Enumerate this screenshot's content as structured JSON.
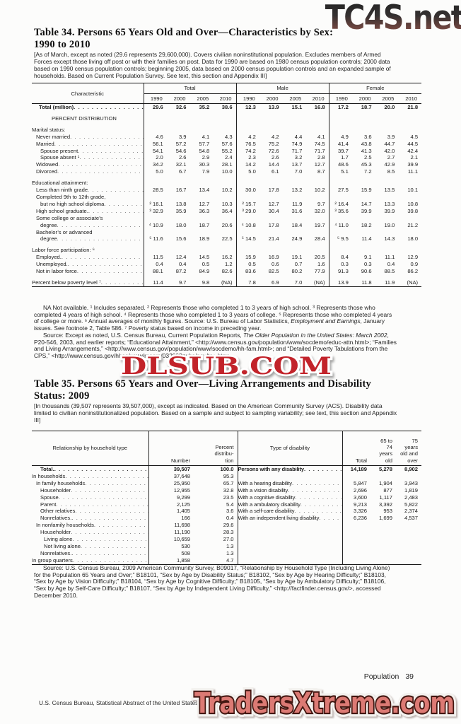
{
  "watermarks": {
    "top": "TC4S.net",
    "middle": "DLSUB.COM",
    "bottom": "TradersXtreme.com"
  },
  "footer": {
    "page_label": "Population",
    "page_number": "39",
    "bureau_line": "U.S. Census Bureau, Statistical Abstract of the United States: 2012"
  },
  "table34": {
    "title_line1": "Table 34. Persons 65 Years Old and Over—Characteristics by Sex:",
    "title_line2": "1990 to 2010",
    "bracket_note": "[As of March, except as noted (29.6 represents 29,600,000). Covers civilian noninstitutional population. Excludes members of Armed Forces except those living off post or with their families on post. Data for 1990 are based on 1980 census population controls; 2000 data based on 1990 census population controls; beginning 2005, data based on 2000 census population controls and an expanded sample of households. Based on Current Population Survey. See text, this section and Appendix III]",
    "characteristic_header": "Characteristic",
    "groups": [
      "Total",
      "Male",
      "Female"
    ],
    "years": [
      "1990",
      "2000",
      "2005",
      "2010"
    ],
    "rows": [
      {
        "type": "data",
        "bold": true,
        "indent": 10,
        "label": "Total (million)",
        "values": [
          "29.6",
          "32.6",
          "35.2",
          "38.6",
          "12.3",
          "13.9",
          "15.1",
          "16.8",
          "17.2",
          "18.7",
          "20.0",
          "21.8"
        ]
      },
      {
        "type": "spacer"
      },
      {
        "type": "section",
        "label": "PERCENT DISTRIBUTION"
      },
      {
        "type": "spacer"
      },
      {
        "type": "group",
        "label": "Marital status:"
      },
      {
        "type": "data",
        "indent": 6,
        "label": "Never married",
        "values": [
          "4.6",
          "3.9",
          "4.1",
          "4.3",
          "4.2",
          "4.2",
          "4.4",
          "4.1",
          "4.9",
          "3.6",
          "3.9",
          "4.5"
        ]
      },
      {
        "type": "data",
        "indent": 6,
        "label": "Married",
        "values": [
          "56.1",
          "57.2",
          "57.7",
          "57.6",
          "76.5",
          "75.2",
          "74.9",
          "74.5",
          "41.4",
          "43.8",
          "44.7",
          "44.5"
        ]
      },
      {
        "type": "data",
        "indent": 12,
        "label": "Spouse present",
        "values": [
          "54.1",
          "54.6",
          "54.8",
          "55.2",
          "74.2",
          "72.6",
          "71.7",
          "71.7",
          "39.7",
          "41.3",
          "42.0",
          "42.4"
        ]
      },
      {
        "type": "data",
        "indent": 12,
        "label": "Spouse absent ¹",
        "values": [
          "2.0",
          "2.6",
          "2.9",
          "2.4",
          "2.3",
          "2.6",
          "3.2",
          "2.8",
          "1.7",
          "2.5",
          "2.7",
          "2.1"
        ]
      },
      {
        "type": "data",
        "indent": 6,
        "label": "Widowed",
        "values": [
          "34.2",
          "32.1",
          "30.3",
          "28.1",
          "14.2",
          "14.4",
          "13.7",
          "12.7",
          "48.6",
          "45.3",
          "42.9",
          "39.9"
        ]
      },
      {
        "type": "data",
        "indent": 6,
        "label": "Divorced",
        "values": [
          "5.0",
          "6.7",
          "7.9",
          "10.0",
          "5.0",
          "6.1",
          "7.0",
          "8.7",
          "5.1",
          "7.2",
          "8.5",
          "11.1"
        ]
      },
      {
        "type": "spacer"
      },
      {
        "type": "group",
        "label": "Educational attainment:"
      },
      {
        "type": "data",
        "indent": 6,
        "label": "Less than ninth grade",
        "values": [
          "28.5",
          "16.7",
          "13.4",
          "10.2",
          "30.0",
          "17.8",
          "13.2",
          "10.2",
          "27.5",
          "15.9",
          "13.5",
          "10.1"
        ]
      },
      {
        "type": "data",
        "indent": 6,
        "line1": "Completed 9th to 12th grade,",
        "indent2": 12,
        "label": "but no high school diploma",
        "values": [
          "² 16.1",
          "13.8",
          "12.7",
          "10.3",
          "² 15.7",
          "12.7",
          "11.9",
          "9.7",
          "² 16.4",
          "14.7",
          "13.3",
          "10.8"
        ]
      },
      {
        "type": "data",
        "indent": 6,
        "label": "High school graduate.",
        "values": [
          "³ 32.9",
          "35.9",
          "36.3",
          "36.4",
          "³ 29.0",
          "30.4",
          "31.6",
          "32.0",
          "³ 35.6",
          "39.9",
          "39.9",
          "39.8"
        ]
      },
      {
        "type": "data",
        "indent": 6,
        "line1": "Some college or associate’s",
        "indent2": 12,
        "label": "degree",
        "values": [
          "⁴ 10.9",
          "18.0",
          "18.7",
          "20.6",
          "⁴ 10.8",
          "17.8",
          "18.4",
          "19.7",
          "⁴ 11.0",
          "18.2",
          "19.0",
          "21.2"
        ]
      },
      {
        "type": "data",
        "indent": 6,
        "line1": "Bachelor’s or advanced",
        "indent2": 12,
        "label": "degree",
        "values": [
          "⁵ 11.6",
          "15.6",
          "18.9",
          "22.5",
          "⁵ 14.5",
          "21.4",
          "24.9",
          "28.4",
          "⁵ 9.5",
          "11.4",
          "14.3",
          "18.0"
        ]
      },
      {
        "type": "spacer"
      },
      {
        "type": "group",
        "label": "Labor force participation: ⁶"
      },
      {
        "type": "data",
        "indent": 6,
        "label": "Employed.",
        "values": [
          "11.5",
          "12.4",
          "14.5",
          "16.2",
          "15.9",
          "16.9",
          "19.1",
          "20.5",
          "8.4",
          "9.1",
          "11.1",
          "12.9"
        ]
      },
      {
        "type": "data",
        "indent": 6,
        "label": "Unemployed.",
        "values": [
          "0.4",
          "0.4",
          "0.5",
          "1.2",
          "0.5",
          "0.6",
          "0.7",
          "1.6",
          "0.3",
          "0.3",
          "0.4",
          "0.9"
        ]
      },
      {
        "type": "data",
        "indent": 6,
        "label": "Not in labor force",
        "values": [
          "88.1",
          "87.2",
          "84.9",
          "82.6",
          "83.6",
          "82.5",
          "80.2",
          "77.9",
          "91.3",
          "90.6",
          "88.5",
          "86.2"
        ]
      },
      {
        "type": "spacer"
      },
      {
        "type": "data",
        "indent": 0,
        "label": "Percent below poverty level ⁷",
        "values": [
          "11.4",
          "9.7",
          "9.8",
          "(NA)",
          "7.8",
          "6.9",
          "7.0",
          "(NA)",
          "13.9",
          "11.8",
          "11.9",
          "(NA)"
        ]
      }
    ],
    "footnote_seg1": "NA Not available. ¹ Includes separated. ² Represents those who completed 1 to 3 years of high school. ³ Represents those who completed 4 years of high school. ⁴ Represents those who completed 1 to 3 years of college. ⁵ Represents those who completed 4 years of college or more. ⁶ Annual averages of monthly figures. Source: U.S. Bureau of Labor Statistics, ",
    "footnote_italic": "Employment and Earnings",
    "footnote_seg2": ", January issues. See footnote 2, Table 586. ⁷ Poverty status based on income in preceding year.",
    "source_seg1": "Source: Except as noted, U.S. Census Bureau, Current Population Reports, ",
    "source_italic": "The Older Population in the United States: March 2002",
    "source_seg2": ", P20-546, 2003, and earlier reports; “Educational Attainment,” <http://www.census.gov/population/www/socdemo/educ-attn.html>; “Families and Living Arrangements,” <http://www.census.gov/population/www/socdemo/hh-fam.html>; and “Detailed Poverty Tabulations from the CPS,” <http://www.census.gov/hhes/www/macro/032003pubs/pov/toc.htm>."
  },
  "table35": {
    "title_line1": "Table 35. Persons 65 Years and Over—Living Arrangements and Disability",
    "title_line2": "Status: 2009",
    "bracket_note": "[In thousands (39,507 represents 39,507,000), except as indicated. Based on the American Community Survey (ACS). Disability data limited to civilian noninstitutionalized population. Based on a sample and subject to sampling variability; see text, this section and Appendix III]",
    "headers": {
      "relationship": "Relationship by household type",
      "number": "Number",
      "percent_lines": [
        "Percent",
        "distribu-",
        "tion"
      ],
      "type": "Type of disability",
      "total": "Total",
      "age6574_lines": [
        "65 to",
        "74",
        "years",
        "old"
      ],
      "age75_lines": [
        "75",
        "years",
        "old and",
        "over"
      ]
    },
    "rows": [
      {
        "left": {
          "label": "Total.",
          "indent": 12,
          "bold": true,
          "values": [
            "39,507",
            "100.0"
          ]
        },
        "right": {
          "label": "Persons with any disability",
          "bold": true,
          "values": [
            "14,189",
            "5,278",
            "8,902"
          ]
        }
      },
      {
        "left": {
          "label": "In households",
          "indent": 0,
          "values": [
            "37,648",
            "95.3"
          ]
        },
        "right": null
      },
      {
        "left": {
          "label": "In family households",
          "indent": 6,
          "values": [
            "25,950",
            "65.7"
          ]
        },
        "right": {
          "label": "With a hearing disability",
          "values": [
            "5,847",
            "1,904",
            "3,943"
          ]
        }
      },
      {
        "left": {
          "label": "Householder",
          "indent": 12,
          "values": [
            "12,955",
            "32.8"
          ]
        },
        "right": {
          "label": "With a vision disability",
          "values": [
            "2,696",
            "877",
            "1,819"
          ]
        }
      },
      {
        "left": {
          "label": "Spouse",
          "indent": 12,
          "values": [
            "9,299",
            "23.5"
          ]
        },
        "right": {
          "label": "With a cognitive disability",
          "values": [
            "3,600",
            "1,117",
            "2,483"
          ]
        }
      },
      {
        "left": {
          "label": "Parent",
          "indent": 12,
          "values": [
            "2,125",
            "5.4"
          ]
        },
        "right": {
          "label": "With a ambulatory disability",
          "values": [
            "9,213",
            "3,392",
            "5,822"
          ]
        }
      },
      {
        "left": {
          "label": "Other relatives",
          "indent": 12,
          "values": [
            "1,405",
            "3.6"
          ]
        },
        "right": {
          "label": "With a self-care disability",
          "values": [
            "3,326",
            "953",
            "2,374"
          ]
        }
      },
      {
        "left": {
          "label": "Nonrelatives.",
          "indent": 12,
          "values": [
            "166",
            "0.4"
          ]
        },
        "right": {
          "label": "With an independent living disability",
          "values": [
            "6,236",
            "1,699",
            "4,537"
          ]
        }
      },
      {
        "left": {
          "label": "In nonfamily households",
          "indent": 6,
          "values": [
            "11,698",
            "29.6"
          ]
        },
        "right": null
      },
      {
        "left": {
          "label": "Householder",
          "indent": 12,
          "values": [
            "11,190",
            "28.3"
          ]
        },
        "right": null
      },
      {
        "left": {
          "label": "Living alone",
          "indent": 17,
          "values": [
            "10,659",
            "27.0"
          ]
        },
        "right": null
      },
      {
        "left": {
          "label": "Not living alone",
          "indent": 17,
          "values": [
            "530",
            "1.3"
          ]
        },
        "right": null
      },
      {
        "left": {
          "label": "Nonrelatives.",
          "indent": 12,
          "values": [
            "508",
            "1.3"
          ]
        },
        "right": null
      },
      {
        "left": {
          "label": "In group quarters",
          "indent": 0,
          "values": [
            "1,858",
            "4.7"
          ]
        },
        "right": null
      }
    ],
    "source": "Source: U.S. Census Bureau, 2009 American Community Survey, B09017, “Relationship by Household Type (Including Living Alone) for the Population 65 Years and Over;” B18101, “Sex by Age by Disability Status;” B18102, “Sex by Age by Hearing Difficulty;” B18103, “Sex by Age by Vision Difficulty;” B18104, “Sex by Age by Cognitive Difficulty;” B18105, “Sex by Age by Ambulatory Difficulty;” B18106, “Sex by Age by Self-Care Difficulty;” B18107, “Sex by Age by Independent Living Difficulty,” <http://factfinder.census.gov/>, accessed December 2010."
  }
}
